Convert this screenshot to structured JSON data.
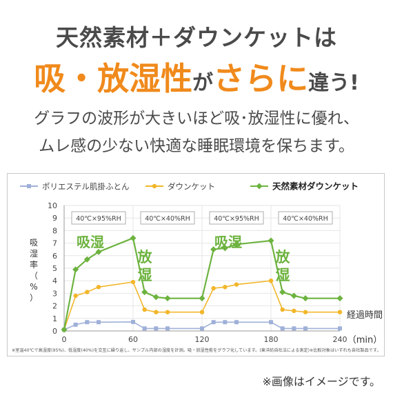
{
  "headline": {
    "line1": "天然素材＋ダウンケットは",
    "part_big": "吸・放湿性",
    "part_ga": "が",
    "part_mid": "さらに",
    "part_end": "違う!"
  },
  "description": {
    "line1": "グラフの波形が大きいほど吸･放湿性に優れ、",
    "line2": "ムレ感の少ない快適な睡眠環境を保ちます。"
  },
  "footnote": "※室温40℃で高湿度(95%)、低湿度(40%)を交互に繰り返し、サンプル内部の湿度を計測。吸・放湿性能をグラフ化しています。(東洋紡自社法による測定)※比較対象はいずれも自社製品です。",
  "image_note": "※画像はイメージです。",
  "colors": {
    "accent_orange": "#f08a1c",
    "series_polyester": "#9fb0d8",
    "series_down": "#f2b62a",
    "series_natural": "#6db33f"
  },
  "chart_data": {
    "type": "line",
    "title": "",
    "ylabel": "吸湿率（%）",
    "xlabel": "経過時間（min）",
    "xlabel_line1": "経過時間",
    "xlabel_line2": "（min）",
    "xlim": [
      0,
      240
    ],
    "ylim": [
      0,
      10
    ],
    "x_ticks": [
      0,
      60,
      120,
      180,
      240
    ],
    "y_ticks": [
      0,
      1,
      2,
      3,
      4,
      5,
      6,
      7,
      8,
      9,
      10
    ],
    "grid": true,
    "legend_position": "top",
    "phases": [
      {
        "label": "40℃×95%RH",
        "phase_text": "吸湿",
        "x_start": 0,
        "x_end": 60
      },
      {
        "label": "40℃×40%RH",
        "phase_text": "放湿",
        "x_start": 60,
        "x_end": 120
      },
      {
        "label": "40℃×95%RH",
        "phase_text": "吸湿",
        "x_start": 120,
        "x_end": 180
      },
      {
        "label": "40℃×40%RH",
        "phase_text": "放湿",
        "x_start": 180,
        "x_end": 240
      }
    ],
    "series": [
      {
        "name": "ポリエステル肌掛ふとん",
        "marker": "square",
        "color": "#9fb0d8",
        "points": [
          [
            0,
            0.1
          ],
          [
            10,
            0.5
          ],
          [
            20,
            0.7
          ],
          [
            30,
            0.7
          ],
          [
            60,
            0.72
          ],
          [
            70,
            0.2
          ],
          [
            80,
            0.2
          ],
          [
            90,
            0.2
          ],
          [
            120,
            0.2
          ],
          [
            130,
            0.7
          ],
          [
            140,
            0.7
          ],
          [
            150,
            0.7
          ],
          [
            180,
            0.7
          ],
          [
            190,
            0.2
          ],
          [
            200,
            0.2
          ],
          [
            210,
            0.2
          ],
          [
            240,
            0.2
          ]
        ]
      },
      {
        "name": "ダウンケット",
        "marker": "circle",
        "color": "#f2b62a",
        "points": [
          [
            0,
            0.1
          ],
          [
            10,
            2.8
          ],
          [
            20,
            3.1
          ],
          [
            30,
            3.5
          ],
          [
            60,
            3.9
          ],
          [
            70,
            1.7
          ],
          [
            80,
            1.5
          ],
          [
            90,
            1.5
          ],
          [
            120,
            1.5
          ],
          [
            130,
            3.4
          ],
          [
            140,
            3.5
          ],
          [
            150,
            3.7
          ],
          [
            180,
            4.0
          ],
          [
            190,
            1.7
          ],
          [
            200,
            1.6
          ],
          [
            210,
            1.5
          ],
          [
            240,
            1.5
          ]
        ]
      },
      {
        "name": "天然素材ダウンケット",
        "marker": "diamond",
        "color": "#6db33f",
        "points": [
          [
            0,
            0.1
          ],
          [
            10,
            4.9
          ],
          [
            20,
            5.7
          ],
          [
            30,
            6.3
          ],
          [
            60,
            7.4
          ],
          [
            70,
            3.1
          ],
          [
            80,
            2.7
          ],
          [
            90,
            2.6
          ],
          [
            120,
            2.6
          ],
          [
            130,
            6.5
          ],
          [
            140,
            6.6
          ],
          [
            150,
            6.9
          ],
          [
            180,
            7.2
          ],
          [
            190,
            3.1
          ],
          [
            200,
            2.8
          ],
          [
            210,
            2.6
          ],
          [
            240,
            2.6
          ]
        ]
      }
    ]
  }
}
